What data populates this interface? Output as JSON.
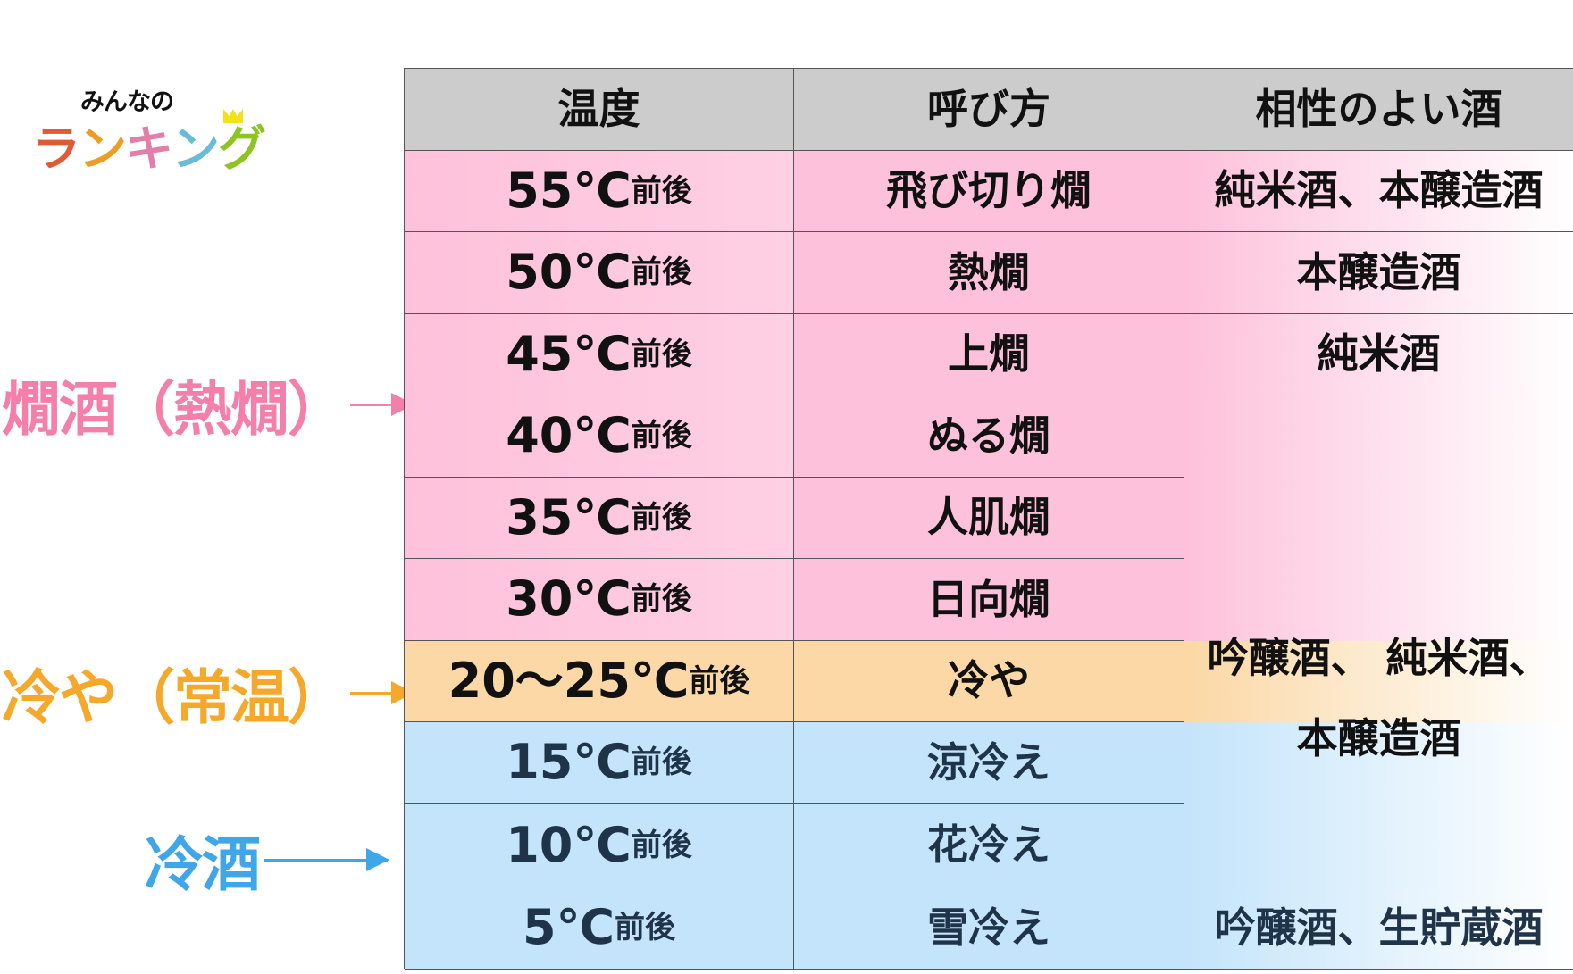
{
  "logo": {
    "top": "みんなの",
    "chars": [
      "ラ",
      "ン",
      "キ",
      "ン",
      "グ"
    ],
    "colors": [
      "#e05a35",
      "#ee9c24",
      "#e27ea9",
      "#68bcd8",
      "#8fc322"
    ]
  },
  "side_labels": [
    {
      "text": "燗酒（熱燗）",
      "color": "#f47fa8"
    },
    {
      "text": "冷や（常温）",
      "color": "#f6a82b"
    },
    {
      "text": "冷酒",
      "color": "#3fa6ea"
    }
  ],
  "table": {
    "headers": [
      "温度",
      "呼び方",
      "相性のよい酒"
    ],
    "rows": [
      {
        "temp": "55℃",
        "suffix": "前後",
        "name": "飛び切り燗",
        "sake": "純米酒、本醸造酒",
        "band": "pink"
      },
      {
        "temp": "50℃",
        "suffix": "前後",
        "name": "熱燗",
        "sake": "本醸造酒",
        "band": "pink"
      },
      {
        "temp": "45℃",
        "suffix": "前後",
        "name": "上燗",
        "sake": "純米酒",
        "band": "pink"
      },
      {
        "temp": "40℃",
        "suffix": "前後",
        "name": "ぬる燗",
        "band": "pink"
      },
      {
        "temp": "35℃",
        "suffix": "前後",
        "name": "人肌燗",
        "band": "pink"
      },
      {
        "temp": "30℃",
        "suffix": "前後",
        "name": "日向燗",
        "band": "pink"
      },
      {
        "temp": "20〜25℃",
        "suffix": "前後",
        "name": "冷や",
        "band": "orange"
      },
      {
        "temp": "15℃",
        "suffix": "前後",
        "name": "涼冷え",
        "band": "blue"
      },
      {
        "temp": "10℃",
        "suffix": "前後",
        "name": "花冷え",
        "band": "blue"
      },
      {
        "temp": "5℃",
        "suffix": "前後",
        "name": "雪冷え",
        "sake": "吟醸酒、生貯蔵酒",
        "band": "blue"
      }
    ],
    "merged_sake": {
      "line1": "吟醸酒、 純米酒、",
      "line2": "本醸造酒"
    }
  }
}
